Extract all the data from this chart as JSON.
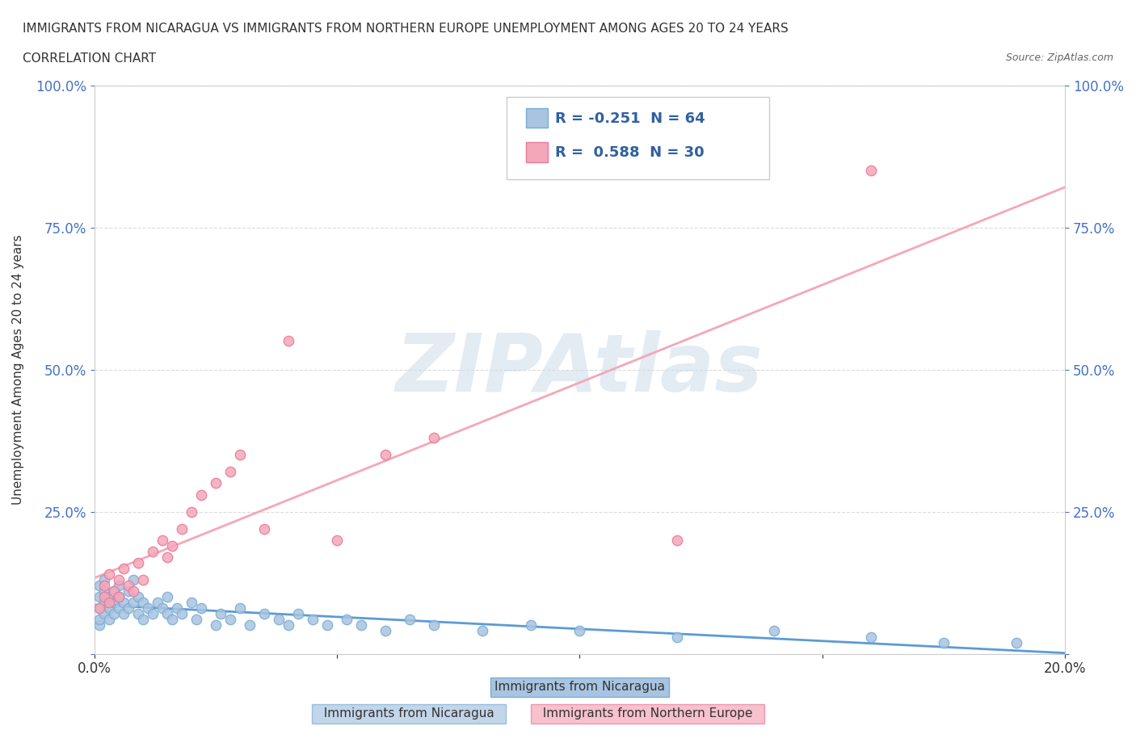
{
  "title_line1": "IMMIGRANTS FROM NICARAGUA VS IMMIGRANTS FROM NORTHERN EUROPE UNEMPLOYMENT AMONG AGES 20 TO 24 YEARS",
  "title_line2": "CORRELATION CHART",
  "source_text": "Source: ZipAtlas.com",
  "xlabel": "",
  "ylabel": "Unemployment Among Ages 20 to 24 years",
  "xlim": [
    0.0,
    0.2
  ],
  "ylim": [
    0.0,
    1.0
  ],
  "xticks": [
    0.0,
    0.05,
    0.1,
    0.15,
    0.2
  ],
  "xtick_labels": [
    "0.0%",
    "",
    "",
    "",
    "20.0%"
  ],
  "yticks": [
    0.0,
    0.25,
    0.5,
    0.75,
    1.0
  ],
  "ytick_labels": [
    "",
    "25.0%",
    "50.0%",
    "75.0%",
    "100.0%"
  ],
  "nicaragua_color": "#a8c4e0",
  "nicaragua_edge": "#7aaed6",
  "northern_europe_color": "#f4a7b9",
  "northern_europe_edge": "#e87a9a",
  "nicaragua_R": -0.251,
  "nicaragua_N": 64,
  "northern_europe_R": 0.588,
  "northern_europe_N": 30,
  "trend_nicaragua_color": "#5b9bd5",
  "trend_northern_europe_color": "#f4a7b9",
  "watermark": "ZIPAtlas",
  "watermark_color": "#c8d8e8",
  "legend_R_color": "#3060a0",
  "background_color": "#ffffff",
  "nicaragua_x": [
    0.001,
    0.001,
    0.001,
    0.001,
    0.001,
    0.002,
    0.002,
    0.002,
    0.002,
    0.003,
    0.003,
    0.003,
    0.004,
    0.004,
    0.004,
    0.005,
    0.005,
    0.005,
    0.006,
    0.006,
    0.007,
    0.007,
    0.008,
    0.008,
    0.009,
    0.009,
    0.01,
    0.01,
    0.011,
    0.012,
    0.013,
    0.014,
    0.015,
    0.015,
    0.016,
    0.017,
    0.018,
    0.02,
    0.021,
    0.022,
    0.025,
    0.026,
    0.028,
    0.03,
    0.032,
    0.035,
    0.038,
    0.04,
    0.042,
    0.045,
    0.048,
    0.052,
    0.055,
    0.06,
    0.065,
    0.07,
    0.08,
    0.09,
    0.1,
    0.12,
    0.14,
    0.16,
    0.175,
    0.19
  ],
  "nicaragua_y": [
    0.05,
    0.08,
    0.1,
    0.12,
    0.06,
    0.07,
    0.09,
    0.11,
    0.13,
    0.06,
    0.08,
    0.1,
    0.07,
    0.09,
    0.11,
    0.08,
    0.1,
    0.12,
    0.07,
    0.09,
    0.08,
    0.11,
    0.09,
    0.13,
    0.07,
    0.1,
    0.06,
    0.09,
    0.08,
    0.07,
    0.09,
    0.08,
    0.07,
    0.1,
    0.06,
    0.08,
    0.07,
    0.09,
    0.06,
    0.08,
    0.05,
    0.07,
    0.06,
    0.08,
    0.05,
    0.07,
    0.06,
    0.05,
    0.07,
    0.06,
    0.05,
    0.06,
    0.05,
    0.04,
    0.06,
    0.05,
    0.04,
    0.05,
    0.04,
    0.03,
    0.04,
    0.03,
    0.02,
    0.02
  ],
  "northern_europe_x": [
    0.001,
    0.002,
    0.002,
    0.003,
    0.003,
    0.004,
    0.005,
    0.005,
    0.006,
    0.007,
    0.008,
    0.009,
    0.01,
    0.012,
    0.014,
    0.015,
    0.016,
    0.018,
    0.02,
    0.022,
    0.025,
    0.028,
    0.03,
    0.035,
    0.04,
    0.05,
    0.06,
    0.07,
    0.12,
    0.16
  ],
  "northern_europe_y": [
    0.08,
    0.1,
    0.12,
    0.09,
    0.14,
    0.11,
    0.1,
    0.13,
    0.15,
    0.12,
    0.11,
    0.16,
    0.13,
    0.18,
    0.2,
    0.17,
    0.19,
    0.22,
    0.25,
    0.28,
    0.3,
    0.32,
    0.35,
    0.22,
    0.55,
    0.2,
    0.35,
    0.38,
    0.2,
    0.85
  ]
}
